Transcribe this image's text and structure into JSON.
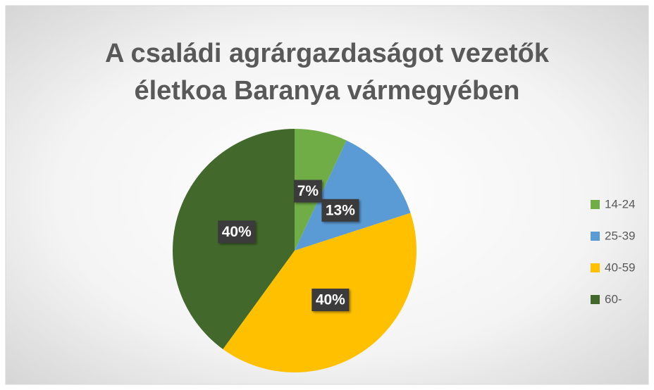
{
  "chart_data": {
    "type": "pie",
    "title": [
      "A családi agrárgazdaságot vezetők",
      "életkoa Baranya vármegyében"
    ],
    "categories": [
      "14-24",
      "25-39",
      "40-59",
      "60-"
    ],
    "values": [
      7,
      13,
      40,
      40
    ],
    "value_labels": [
      "7%",
      "13%",
      "40%",
      "40%"
    ],
    "colors": [
      "#70ad47",
      "#5b9bd5",
      "#ffc000",
      "#43682b"
    ],
    "legend": "right"
  }
}
